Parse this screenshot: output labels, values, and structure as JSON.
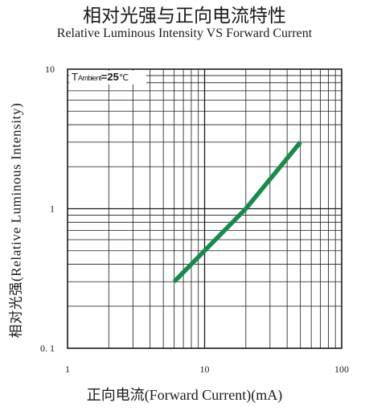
{
  "header": {
    "title_cn": "相对光强与正向电流特性",
    "title_en": "Relative Luminous Intensity VS Forward Current"
  },
  "chart_data": {
    "type": "line",
    "title": "Relative Luminous Intensity VS Forward Current",
    "xlabel": "正向电流(Forward Current)(mA)",
    "ylabel": "相对光强(Relative Luminous Intensity)",
    "x_scale": "log",
    "y_scale": "log",
    "xlim": [
      1,
      100
    ],
    "ylim": [
      0.1,
      10
    ],
    "x_ticks": [
      {
        "value": 1,
        "label": "1"
      },
      {
        "value": 10,
        "label": "10"
      },
      {
        "value": 100,
        "label": "100"
      }
    ],
    "y_ticks": [
      {
        "value": 0.1,
        "label": "0. 1"
      },
      {
        "value": 1,
        "label": "1"
      },
      {
        "value": 10,
        "label": "10"
      }
    ],
    "grid": true,
    "annotation": {
      "name": "T",
      "sub": "Ambient",
      "value": "=25",
      "unit": "℃"
    },
    "series": [
      {
        "color": "#1a8a4a",
        "x": [
          6,
          10,
          20,
          50
        ],
        "y": [
          0.3,
          0.5,
          1.0,
          3.0
        ]
      }
    ]
  }
}
